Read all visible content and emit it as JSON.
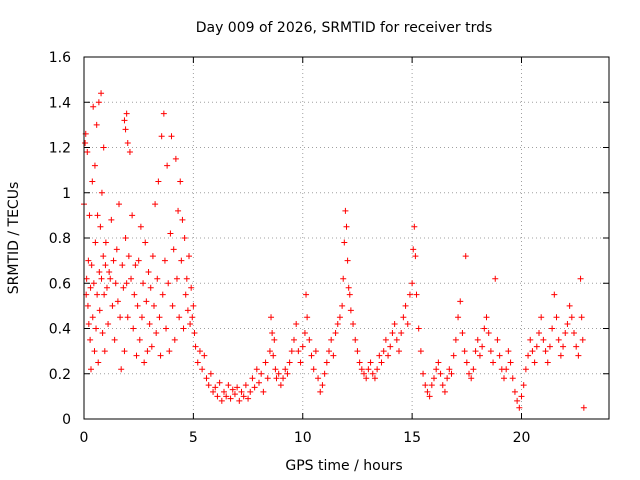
{
  "chart_data": {
    "type": "scatter",
    "title": "Day 009 of 2026, SRMTID for receiver trds",
    "xlabel": "GPS time / hours",
    "ylabel": "SRMTID / TECUs",
    "xlim": [
      0,
      24
    ],
    "ylim": [
      0,
      1.6
    ],
    "xticks": [
      0,
      5,
      10,
      15,
      20
    ],
    "xtick_labels": [
      "0",
      "5",
      "10",
      "15",
      "20"
    ],
    "yticks": [
      0,
      0.2,
      0.4,
      0.6,
      0.8,
      1,
      1.2,
      1.4,
      1.6
    ],
    "ytick_labels": [
      "0",
      "0.2",
      "0.4",
      "0.6",
      "0.8",
      "1",
      "1.2",
      "1.4",
      "1.6"
    ],
    "grid": true,
    "marker": "plus",
    "color": "#ff0000",
    "series": [
      {
        "name": "SRMTID",
        "points": [
          [
            0.0,
            0.95
          ],
          [
            0.05,
            1.22
          ],
          [
            0.08,
            1.26
          ],
          [
            0.1,
            0.55
          ],
          [
            0.12,
            0.62
          ],
          [
            0.15,
            1.18
          ],
          [
            0.18,
            0.5
          ],
          [
            0.2,
            0.7
          ],
          [
            0.22,
            0.42
          ],
          [
            0.25,
            0.9
          ],
          [
            0.28,
            0.35
          ],
          [
            0.3,
            0.58
          ],
          [
            0.32,
            0.22
          ],
          [
            0.35,
            0.68
          ],
          [
            0.38,
            1.05
          ],
          [
            0.4,
            0.45
          ],
          [
            0.42,
            1.38
          ],
          [
            0.45,
            0.6
          ],
          [
            0.48,
            0.3
          ],
          [
            0.5,
            1.12
          ],
          [
            0.52,
            0.78
          ],
          [
            0.55,
            0.4
          ],
          [
            0.58,
            1.3
          ],
          [
            0.6,
            0.55
          ],
          [
            0.62,
            0.9
          ],
          [
            0.65,
            0.25
          ],
          [
            0.68,
            1.4
          ],
          [
            0.7,
            0.65
          ],
          [
            0.72,
            0.48
          ],
          [
            0.75,
            0.85
          ],
          [
            0.78,
            1.44
          ],
          [
            0.8,
            0.62
          ],
          [
            0.82,
            1.0
          ],
          [
            0.85,
            0.38
          ],
          [
            0.88,
            0.72
          ],
          [
            0.9,
            1.2
          ],
          [
            0.92,
            0.55
          ],
          [
            0.95,
            0.3
          ],
          [
            0.98,
            0.68
          ],
          [
            1.0,
            0.78
          ],
          [
            1.05,
            0.58
          ],
          [
            1.1,
            0.42
          ],
          [
            1.15,
            0.65
          ],
          [
            1.2,
            0.62
          ],
          [
            1.25,
            0.88
          ],
          [
            1.3,
            0.5
          ],
          [
            1.35,
            0.7
          ],
          [
            1.4,
            0.35
          ],
          [
            1.45,
            0.6
          ],
          [
            1.5,
            0.75
          ],
          [
            1.55,
            0.52
          ],
          [
            1.6,
            0.95
          ],
          [
            1.65,
            0.45
          ],
          [
            1.7,
            0.22
          ],
          [
            1.75,
            0.68
          ],
          [
            1.8,
            0.58
          ],
          [
            1.85,
            0.3
          ],
          [
            1.9,
            0.8
          ],
          [
            1.95,
            0.6
          ],
          [
            2.0,
            0.45
          ],
          [
            1.85,
            1.32
          ],
          [
            1.9,
            1.28
          ],
          [
            1.95,
            1.35
          ],
          [
            2.0,
            1.22
          ],
          [
            2.05,
            0.72
          ],
          [
            2.1,
            1.18
          ],
          [
            2.15,
            0.62
          ],
          [
            2.2,
            0.9
          ],
          [
            2.25,
            0.4
          ],
          [
            2.3,
            0.55
          ],
          [
            2.35,
            0.68
          ],
          [
            2.4,
            0.28
          ],
          [
            2.45,
            0.5
          ],
          [
            2.5,
            0.7
          ],
          [
            2.55,
            0.35
          ],
          [
            2.6,
            0.85
          ],
          [
            2.65,
            0.45
          ],
          [
            2.7,
            0.6
          ],
          [
            2.75,
            0.25
          ],
          [
            2.8,
            0.78
          ],
          [
            2.85,
            0.52
          ],
          [
            2.9,
            0.3
          ],
          [
            2.95,
            0.65
          ],
          [
            3.0,
            0.42
          ],
          [
            3.05,
            0.58
          ],
          [
            3.1,
            0.32
          ],
          [
            3.15,
            0.72
          ],
          [
            3.2,
            0.5
          ],
          [
            3.25,
            0.95
          ],
          [
            3.3,
            0.38
          ],
          [
            3.35,
            0.62
          ],
          [
            3.4,
            1.05
          ],
          [
            3.45,
            0.45
          ],
          [
            3.5,
            0.28
          ],
          [
            3.55,
            1.25
          ],
          [
            3.6,
            0.55
          ],
          [
            3.65,
            1.35
          ],
          [
            3.7,
            0.7
          ],
          [
            3.75,
            0.4
          ],
          [
            3.8,
            1.12
          ],
          [
            3.85,
            0.6
          ],
          [
            3.9,
            0.3
          ],
          [
            3.95,
            0.82
          ],
          [
            4.0,
            1.25
          ],
          [
            4.05,
            0.5
          ],
          [
            4.1,
            0.75
          ],
          [
            4.15,
            0.35
          ],
          [
            4.2,
            1.15
          ],
          [
            4.25,
            0.62
          ],
          [
            4.3,
            0.92
          ],
          [
            4.35,
            0.45
          ],
          [
            4.4,
            1.05
          ],
          [
            4.45,
            0.7
          ],
          [
            4.5,
            0.88
          ],
          [
            4.55,
            0.4
          ],
          [
            4.6,
            0.8
          ],
          [
            4.65,
            0.55
          ],
          [
            4.7,
            0.62
          ],
          [
            4.75,
            0.48
          ],
          [
            4.8,
            0.72
          ],
          [
            4.85,
            0.42
          ],
          [
            4.9,
            0.58
          ],
          [
            4.95,
            0.45
          ],
          [
            5.0,
            0.5
          ],
          [
            5.05,
            0.38
          ],
          [
            5.1,
            0.32
          ],
          [
            5.2,
            0.25
          ],
          [
            5.3,
            0.3
          ],
          [
            5.4,
            0.22
          ],
          [
            5.5,
            0.28
          ],
          [
            5.6,
            0.18
          ],
          [
            5.7,
            0.15
          ],
          [
            5.8,
            0.2
          ],
          [
            5.9,
            0.12
          ],
          [
            6.0,
            0.14
          ],
          [
            6.1,
            0.1
          ],
          [
            6.2,
            0.16
          ],
          [
            6.3,
            0.08
          ],
          [
            6.4,
            0.12
          ],
          [
            6.5,
            0.1
          ],
          [
            6.6,
            0.15
          ],
          [
            6.7,
            0.09
          ],
          [
            6.8,
            0.13
          ],
          [
            6.9,
            0.11
          ],
          [
            7.0,
            0.14
          ],
          [
            7.1,
            0.08
          ],
          [
            7.2,
            0.12
          ],
          [
            7.3,
            0.1
          ],
          [
            7.4,
            0.15
          ],
          [
            7.5,
            0.09
          ],
          [
            7.6,
            0.12
          ],
          [
            7.7,
            0.18
          ],
          [
            7.8,
            0.14
          ],
          [
            7.9,
            0.22
          ],
          [
            8.0,
            0.16
          ],
          [
            8.1,
            0.2
          ],
          [
            8.2,
            0.12
          ],
          [
            8.3,
            0.25
          ],
          [
            8.4,
            0.18
          ],
          [
            8.5,
            0.3
          ],
          [
            8.55,
            0.45
          ],
          [
            8.6,
            0.38
          ],
          [
            8.65,
            0.28
          ],
          [
            8.7,
            0.35
          ],
          [
            8.75,
            0.22
          ],
          [
            8.8,
            0.18
          ],
          [
            8.9,
            0.2
          ],
          [
            9.0,
            0.15
          ],
          [
            9.1,
            0.18
          ],
          [
            9.2,
            0.22
          ],
          [
            9.3,
            0.2
          ],
          [
            9.4,
            0.25
          ],
          [
            9.5,
            0.3
          ],
          [
            9.6,
            0.35
          ],
          [
            9.7,
            0.42
          ],
          [
            9.8,
            0.3
          ],
          [
            9.9,
            0.25
          ],
          [
            10.0,
            0.32
          ],
          [
            10.1,
            0.38
          ],
          [
            10.15,
            0.55
          ],
          [
            10.2,
            0.45
          ],
          [
            10.3,
            0.35
          ],
          [
            10.4,
            0.28
          ],
          [
            10.5,
            0.22
          ],
          [
            10.6,
            0.3
          ],
          [
            10.7,
            0.18
          ],
          [
            10.8,
            0.12
          ],
          [
            10.9,
            0.15
          ],
          [
            11.0,
            0.2
          ],
          [
            11.1,
            0.25
          ],
          [
            11.2,
            0.3
          ],
          [
            11.3,
            0.35
          ],
          [
            11.4,
            0.28
          ],
          [
            11.5,
            0.38
          ],
          [
            11.6,
            0.42
          ],
          [
            11.7,
            0.45
          ],
          [
            11.8,
            0.5
          ],
          [
            11.85,
            0.62
          ],
          [
            11.9,
            0.78
          ],
          [
            11.95,
            0.92
          ],
          [
            12.0,
            0.85
          ],
          [
            12.05,
            0.7
          ],
          [
            12.1,
            0.58
          ],
          [
            12.15,
            0.55
          ],
          [
            12.2,
            0.48
          ],
          [
            12.3,
            0.42
          ],
          [
            12.4,
            0.35
          ],
          [
            12.5,
            0.3
          ],
          [
            12.6,
            0.25
          ],
          [
            12.7,
            0.22
          ],
          [
            12.8,
            0.2
          ],
          [
            12.9,
            0.18
          ],
          [
            13.0,
            0.22
          ],
          [
            13.1,
            0.25
          ],
          [
            13.2,
            0.2
          ],
          [
            13.3,
            0.18
          ],
          [
            13.4,
            0.22
          ],
          [
            13.5,
            0.28
          ],
          [
            13.6,
            0.25
          ],
          [
            13.7,
            0.3
          ],
          [
            13.8,
            0.35
          ],
          [
            13.9,
            0.28
          ],
          [
            14.0,
            0.32
          ],
          [
            14.1,
            0.38
          ],
          [
            14.2,
            0.42
          ],
          [
            14.3,
            0.35
          ],
          [
            14.4,
            0.3
          ],
          [
            14.5,
            0.38
          ],
          [
            14.6,
            0.45
          ],
          [
            14.7,
            0.5
          ],
          [
            14.8,
            0.42
          ],
          [
            14.9,
            0.55
          ],
          [
            15.0,
            0.6
          ],
          [
            15.05,
            0.75
          ],
          [
            15.1,
            0.85
          ],
          [
            15.15,
            0.72
          ],
          [
            15.2,
            0.55
          ],
          [
            15.3,
            0.4
          ],
          [
            15.4,
            0.3
          ],
          [
            15.5,
            0.2
          ],
          [
            15.6,
            0.15
          ],
          [
            15.7,
            0.12
          ],
          [
            15.8,
            0.1
          ],
          [
            15.9,
            0.15
          ],
          [
            16.0,
            0.18
          ],
          [
            16.1,
            0.22
          ],
          [
            16.2,
            0.25
          ],
          [
            16.3,
            0.2
          ],
          [
            16.4,
            0.15
          ],
          [
            16.5,
            0.12
          ],
          [
            16.6,
            0.18
          ],
          [
            16.7,
            0.22
          ],
          [
            16.8,
            0.2
          ],
          [
            16.9,
            0.28
          ],
          [
            17.0,
            0.35
          ],
          [
            17.1,
            0.45
          ],
          [
            17.2,
            0.52
          ],
          [
            17.3,
            0.38
          ],
          [
            17.4,
            0.3
          ],
          [
            17.45,
            0.72
          ],
          [
            17.5,
            0.25
          ],
          [
            17.6,
            0.2
          ],
          [
            17.7,
            0.18
          ],
          [
            17.8,
            0.22
          ],
          [
            17.9,
            0.3
          ],
          [
            18.0,
            0.35
          ],
          [
            18.1,
            0.28
          ],
          [
            18.2,
            0.32
          ],
          [
            18.3,
            0.4
          ],
          [
            18.4,
            0.45
          ],
          [
            18.5,
            0.38
          ],
          [
            18.6,
            0.3
          ],
          [
            18.7,
            0.25
          ],
          [
            18.8,
            0.62
          ],
          [
            18.9,
            0.35
          ],
          [
            19.0,
            0.28
          ],
          [
            19.1,
            0.22
          ],
          [
            19.2,
            0.18
          ],
          [
            19.3,
            0.22
          ],
          [
            19.4,
            0.3
          ],
          [
            19.5,
            0.25
          ],
          [
            19.6,
            0.18
          ],
          [
            19.7,
            0.12
          ],
          [
            19.8,
            0.08
          ],
          [
            19.9,
            0.05
          ],
          [
            20.0,
            0.1
          ],
          [
            20.1,
            0.15
          ],
          [
            20.2,
            0.22
          ],
          [
            20.3,
            0.28
          ],
          [
            20.4,
            0.35
          ],
          [
            20.5,
            0.3
          ],
          [
            20.6,
            0.25
          ],
          [
            20.7,
            0.32
          ],
          [
            20.8,
            0.38
          ],
          [
            20.9,
            0.45
          ],
          [
            21.0,
            0.35
          ],
          [
            21.1,
            0.3
          ],
          [
            21.2,
            0.25
          ],
          [
            21.3,
            0.32
          ],
          [
            21.4,
            0.4
          ],
          [
            21.5,
            0.55
          ],
          [
            21.6,
            0.45
          ],
          [
            21.7,
            0.35
          ],
          [
            21.8,
            0.28
          ],
          [
            21.9,
            0.32
          ],
          [
            22.0,
            0.38
          ],
          [
            22.1,
            0.42
          ],
          [
            22.2,
            0.5
          ],
          [
            22.3,
            0.45
          ],
          [
            22.4,
            0.38
          ],
          [
            22.5,
            0.32
          ],
          [
            22.6,
            0.28
          ],
          [
            22.7,
            0.62
          ],
          [
            22.75,
            0.45
          ],
          [
            22.8,
            0.35
          ],
          [
            22.85,
            0.05
          ]
        ]
      }
    ]
  }
}
